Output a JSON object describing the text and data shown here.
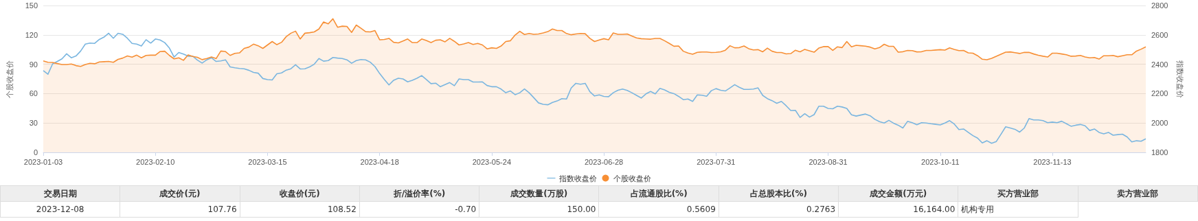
{
  "chart_data": {
    "type": "line",
    "ylabel": "个股收盘价",
    "y2label": "指数收盘价",
    "categories": [
      "2023-01-03",
      null,
      null,
      null,
      null,
      null,
      null,
      null,
      null,
      null,
      null,
      null,
      null,
      null,
      null,
      null,
      null,
      null,
      null,
      null,
      null,
      null,
      null,
      null,
      "2023-02-10",
      null,
      null,
      null,
      null,
      null,
      null,
      null,
      null,
      null,
      null,
      null,
      null,
      null,
      null,
      null,
      null,
      null,
      null,
      null,
      null,
      null,
      null,
      null,
      "2023-03-15",
      null,
      null,
      null,
      null,
      null,
      null,
      null,
      null,
      null,
      null,
      null,
      null,
      null,
      null,
      null,
      null,
      null,
      null,
      null,
      null,
      null,
      null,
      null,
      "2023-04-18",
      null,
      null,
      null,
      null,
      null,
      null,
      null,
      null,
      null,
      null,
      null,
      null,
      null,
      null,
      null,
      null,
      null,
      null,
      null,
      null,
      null,
      null,
      null,
      "2023-05-24",
      null,
      null,
      null,
      null,
      null,
      null,
      null,
      null,
      null,
      null,
      null,
      null,
      null,
      null,
      null,
      null,
      null,
      null,
      null,
      null,
      null,
      null,
      null,
      "2023-06-28",
      null,
      null,
      null,
      null,
      null,
      null,
      null,
      null,
      null,
      null,
      null,
      null,
      null,
      null,
      null,
      null,
      null,
      null,
      null,
      null,
      null,
      null,
      null,
      "2023-07-31",
      null,
      null,
      null,
      null,
      null,
      null,
      null,
      null,
      null,
      null,
      null,
      null,
      null,
      null,
      null,
      null,
      null,
      null,
      null,
      null,
      null,
      null,
      null,
      "2023-08-31",
      null,
      null,
      null,
      null,
      null,
      null,
      null,
      null,
      null,
      null,
      null,
      null,
      null,
      null,
      null,
      null,
      null,
      null,
      null,
      null,
      null,
      null,
      null,
      "2023-10-11",
      null,
      null,
      null,
      null,
      null,
      null,
      null,
      null,
      null,
      null,
      null,
      null,
      null,
      null,
      null,
      null,
      null,
      null,
      null,
      null,
      null,
      null,
      null,
      "2023-11-13",
      null,
      null,
      null,
      null,
      null,
      null,
      null,
      null,
      null,
      null,
      null,
      null,
      null,
      null,
      null,
      null,
      null,
      null,
      null,
      null
    ],
    "series": [
      {
        "name": "指数收盘价",
        "axis": "y2",
        "color": "#7ab6e0",
        "values": [
          2357,
          2332,
          2403,
          2419,
          2437,
          2471,
          2444,
          2456,
          2490,
          2537,
          2544,
          2542,
          2569,
          2585,
          2611,
          2577,
          2611,
          2604,
          2577,
          2542,
          2537,
          2524,
          2567,
          2544,
          2572,
          2565,
          2547,
          2510,
          2449,
          2480,
          2469,
          2455,
          2455,
          2428,
          2408,
          2430,
          2444,
          2419,
          2423,
          2430,
          2382,
          2376,
          2371,
          2369,
          2359,
          2344,
          2339,
          2303,
          2295,
          2293,
          2335,
          2341,
          2360,
          2369,
          2396,
          2368,
          2369,
          2382,
          2400,
          2439,
          2421,
          2425,
          2446,
          2442,
          2439,
          2430,
          2407,
          2425,
          2432,
          2430,
          2414,
          2384,
          2337,
          2297,
          2259,
          2291,
          2305,
          2300,
          2280,
          2291,
          2305,
          2323,
          2296,
          2268,
          2271,
          2247,
          2261,
          2275,
          2254,
          2300,
          2295,
          2295,
          2279,
          2279,
          2280,
          2255,
          2247,
          2247,
          2231,
          2206,
          2218,
          2193,
          2206,
          2232,
          2206,
          2172,
          2137,
          2127,
          2124,
          2140,
          2150,
          2166,
          2163,
          2238,
          2270,
          2264,
          2270,
          2213,
          2184,
          2191,
          2181,
          2179,
          2206,
          2223,
          2231,
          2222,
          2206,
          2188,
          2170,
          2198,
          2215,
          2198,
          2236,
          2225,
          2209,
          2200,
          2181,
          2159,
          2163,
          2147,
          2191,
          2189,
          2182,
          2220,
          2234,
          2223,
          2218,
          2239,
          2261,
          2243,
          2229,
          2229,
          2231,
          2239,
          2188,
          2166,
          2152,
          2134,
          2147,
          2118,
          2085,
          2086,
          2038,
          2063,
          2040,
          2057,
          2114,
          2114,
          2099,
          2097,
          2114,
          2109,
          2099,
          2056,
          2047,
          2054,
          2061,
          2049,
          2025,
          2009,
          2000,
          2018,
          1999,
          1985,
          1966,
          2011,
          2002,
          1988,
          2002,
          2000,
          1995,
          1991,
          1987,
          2000,
          2016,
          1993,
          1955,
          1959,
          1936,
          1914,
          1897,
          1864,
          1879,
          1862,
          1874,
          1923,
          1974,
          1966,
          1957,
          1938,
          1966,
          2030,
          2021,
          2021,
          2016,
          2002,
          2006,
          2002,
          2012,
          1995,
          1978,
          1985,
          1990,
          1981,
          1949,
          1959,
          1936,
          1926,
          1936,
          1917,
          1921,
          1924,
          1905,
          1871,
          1879,
          1876,
          1892
        ]
      },
      {
        "name": "个股收盘价",
        "type": "area",
        "color": "#f78f35",
        "values": [
          93.4,
          92,
          91.8,
          90.7,
          89.7,
          89.7,
          90.2,
          88.6,
          87.8,
          89.7,
          91,
          90.5,
          92.3,
          92.6,
          92.9,
          92,
          95,
          96.3,
          98.5,
          97.2,
          99.3,
          96.6,
          99,
          99.3,
          99.3,
          103,
          103.3,
          99,
          95.5,
          96.6,
          94,
          99.5,
          98,
          97.1,
          94.7,
          95.8,
          97.4,
          95.8,
          103.5,
          103,
          99,
          101.1,
          101.6,
          106.2,
          107.5,
          110.5,
          108.9,
          106.2,
          109.7,
          113.2,
          110,
          112.4,
          118.2,
          121.7,
          123.8,
          115.8,
          121.7,
          122.2,
          123,
          126,
          133.2,
          131.3,
          136.4,
          127.8,
          128.9,
          128.6,
          122.5,
          130,
          126.8,
          123.3,
          123,
          124.4,
          115,
          115.3,
          116.4,
          112.4,
          111.8,
          113.7,
          115.8,
          112.1,
          112.1,
          115.8,
          114.2,
          112.1,
          114.5,
          115,
          112.9,
          116.4,
          113.4,
          109.7,
          110.8,
          112.1,
          110.2,
          111.3,
          109.7,
          105.7,
          106.8,
          106.2,
          108.6,
          113.2,
          114,
          119.8,
          123.6,
          120.4,
          121.4,
          120.6,
          120.9,
          122,
          123.3,
          126,
          124.4,
          124.4,
          121.4,
          120.1,
          120.9,
          121.4,
          121.2,
          116.4,
          113.2,
          114.8,
          116.1,
          115,
          122,
          120.6,
          120.6,
          120.9,
          118.8,
          116.9,
          116.1,
          115.8,
          115.6,
          116.4,
          116.4,
          114,
          111.3,
          108.4,
          108.6,
          103.3,
          101.4,
          100.3,
          102.2,
          102.5,
          102.5,
          102,
          102.2,
          102.7,
          104.3,
          108.9,
          106.8,
          107,
          108.6,
          105.9,
          104.6,
          104.9,
          102.7,
          106.5,
          103.3,
          102,
          102,
          100.6,
          100.9,
          104.3,
          102.7,
          105.2,
          103.8,
          102.3,
          106.5,
          108,
          108,
          104.1,
          107.8,
          107,
          113.2,
          107.8,
          109.3,
          108.9,
          108.5,
          107.5,
          105.7,
          107,
          110.4,
          108.3,
          108.3,
          102.3,
          102.8,
          104.1,
          103.9,
          102.6,
          102.8,
          104.1,
          104.1,
          104.5,
          104.9,
          104.4,
          106.7,
          105.2,
          103.9,
          104.1,
          101.6,
          101.3,
          98.7,
          95.1,
          94.6,
          96.1,
          98.2,
          100.3,
          102.3,
          102.6,
          101.8,
          101,
          102.1,
          102.1,
          100.5,
          99.2,
          98.2,
          97.4,
          101.3,
          101.3,
          100.5,
          99.7,
          98.2,
          98.4,
          99,
          97.4,
          96.6,
          96.9,
          95.3,
          98.7,
          98.7,
          99,
          97.7,
          98.7,
          99.7,
          99.7,
          103.4,
          105.4,
          107.8
        ]
      }
    ],
    "ylim": [
      0,
      150
    ],
    "yticks": [
      0,
      30,
      60,
      90,
      120,
      150
    ],
    "y2lim": [
      1800,
      2800
    ],
    "y2ticks": [
      1800,
      2000,
      2200,
      2400,
      2600,
      2800
    ],
    "grid": "y",
    "legend": "bottom",
    "marker": "none",
    "line_style": "solid",
    "annotations": [
      "交易日期",
      "成交价(元)",
      "收盘价(元)",
      "折/溢价率(%)",
      "成交数量(万股)",
      "占流通股比(%)",
      "占总股本比(%)",
      "成交金额(万元)",
      "买方营业部",
      "卖方营业部",
      "2023-12-08",
      "107.76",
      "108.52",
      "-0.70",
      "150.00",
      "0.5609",
      "0.2763",
      "16,164.00",
      "机构专用"
    ]
  }
}
